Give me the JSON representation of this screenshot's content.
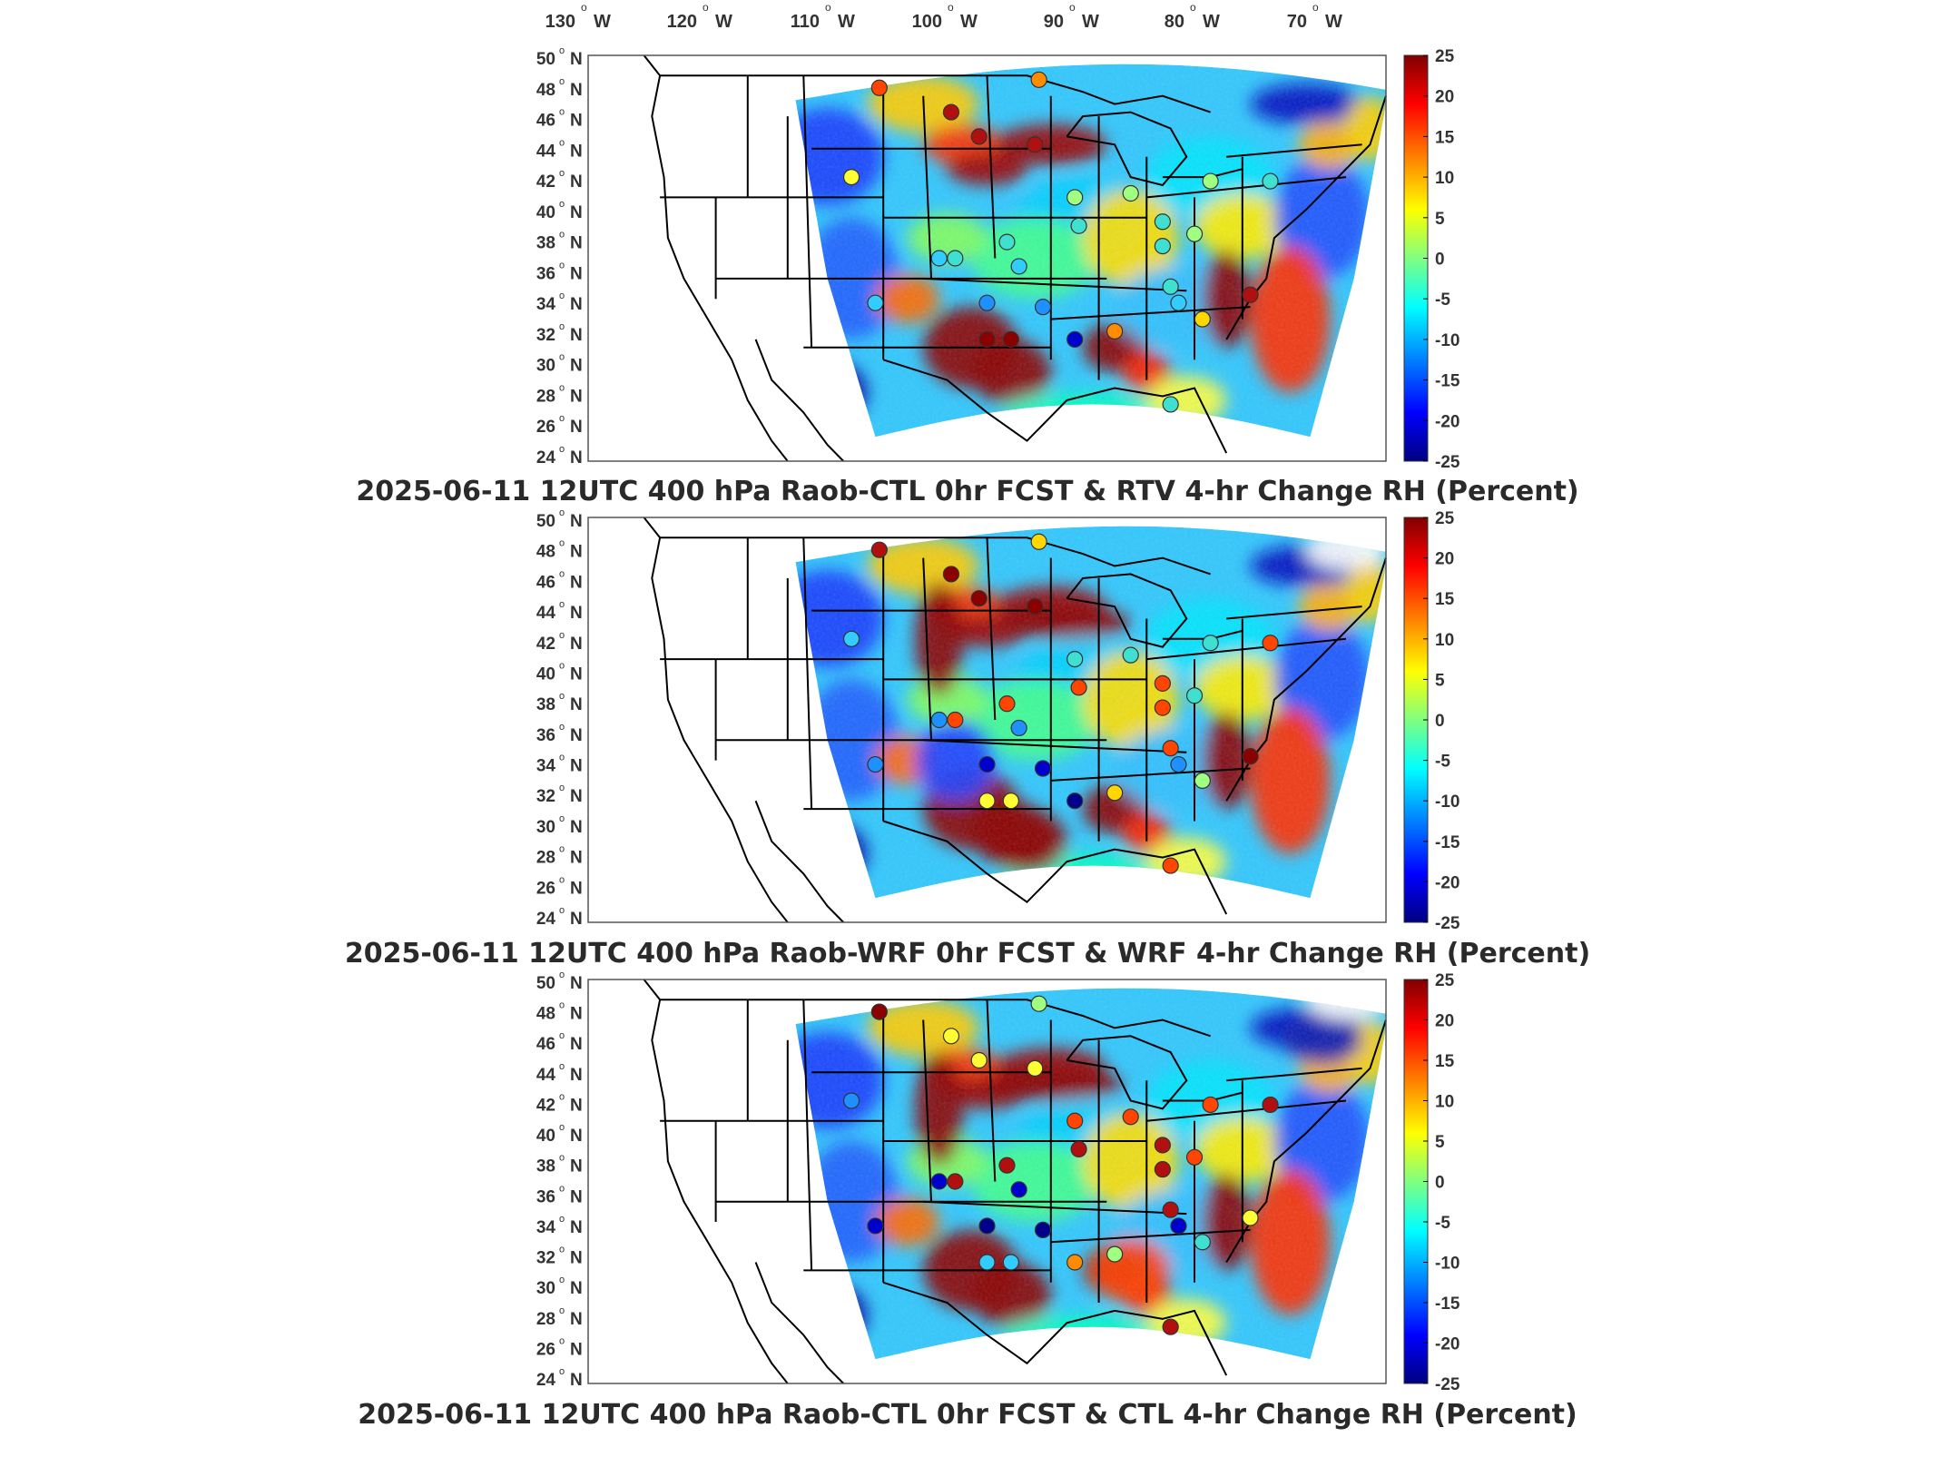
{
  "lon_labels": [
    {
      "deg": "130",
      "hemi": "W"
    },
    {
      "deg": "120",
      "hemi": "W"
    },
    {
      "deg": "110",
      "hemi": "W"
    },
    {
      "deg": "100",
      "hemi": "W"
    },
    {
      "deg": "90",
      "hemi": "W"
    },
    {
      "deg": "80",
      "hemi": "W"
    },
    {
      "deg": "70",
      "hemi": "W"
    }
  ],
  "lat_labels": [
    "50",
    "48",
    "46",
    "44",
    "42",
    "40",
    "38",
    "36",
    "34",
    "32",
    "30",
    "28",
    "26",
    "24"
  ],
  "lat_hemi": "N",
  "colorbar": {
    "ticks": [
      "25",
      "20",
      "15",
      "10",
      "5",
      "0",
      "-5",
      "-10",
      "-15",
      "-20",
      "-25"
    ],
    "colormap": [
      "#800000",
      "#ff0000",
      "#ff8000",
      "#ffff00",
      "#80ff80",
      "#00ffff",
      "#0080ff",
      "#0000ff",
      "#000080"
    ]
  },
  "panels": [
    {
      "title": "2025-06-11 12UTC 400 hPa Raob-CTL 0hr FCST & RTV 4-hr Change RH (Percent)"
    },
    {
      "title": "2025-06-11 12UTC 400 hPa Raob-WRF 0hr FCST & WRF 4-hr Change RH (Percent)"
    },
    {
      "title": "2025-06-11 12UTC 400 hPa Raob-CTL 0hr FCST & CTL 4-hr Change RH (Percent)"
    }
  ],
  "station_colors": [
    "#ff4500",
    "#b01010",
    "#8b0000",
    "#ffff33",
    "#33ccff",
    "#1e90ff",
    "#0000cd",
    "#00008b",
    "#ff8c00",
    "#ffd700",
    "#a0ff80",
    "#40e0d0"
  ]
}
